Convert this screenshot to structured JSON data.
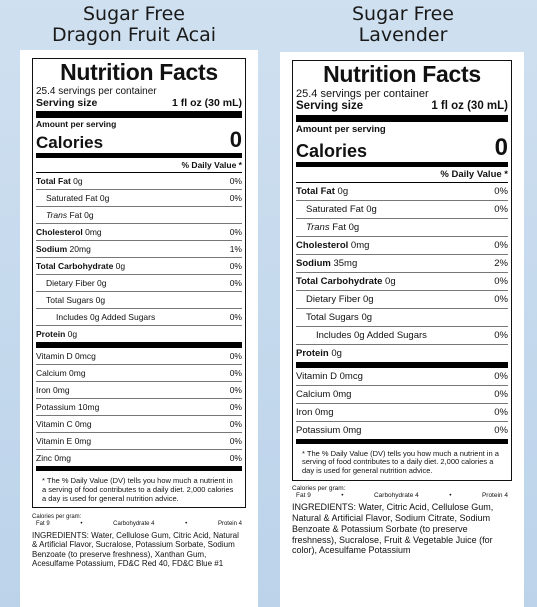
{
  "products": [
    {
      "heading": [
        "Sugar Free",
        "Dragon Fruit Acai"
      ],
      "title": "Nutrition Facts",
      "servings_per_container": "25.4 servings per container",
      "serving_size_label": "Serving size",
      "serving_size_value": "1 fl oz (30 mL)",
      "amount_per_serving": "Amount per serving",
      "calories_label": "Calories",
      "calories_value": "0",
      "dv_header": "% Daily Value *",
      "nutrients": [
        {
          "bold": "Total Fat",
          "rest": " 0g",
          "pct": "0%",
          "indent": 0
        },
        {
          "bold": "",
          "rest": "Saturated Fat 0g",
          "pct": "0%",
          "indent": 1
        },
        {
          "bold": "",
          "italic": "Trans",
          "rest": " Fat 0g",
          "pct": "",
          "indent": 1
        },
        {
          "bold": "Cholesterol",
          "rest": " 0mg",
          "pct": "0%",
          "indent": 0
        },
        {
          "bold": "Sodium",
          "rest": " 20mg",
          "pct": "1%",
          "indent": 0
        },
        {
          "bold": "Total Carbohydrate",
          "rest": " 0g",
          "pct": "0%",
          "indent": 0
        },
        {
          "bold": "",
          "rest": "Dietary Fiber 0g",
          "pct": "0%",
          "indent": 1
        },
        {
          "bold": "",
          "rest": "Total Sugars 0g",
          "pct": "",
          "indent": 1
        },
        {
          "bold": "",
          "rest": "Includes 0g Added Sugars",
          "pct": "0%",
          "indent": 2
        },
        {
          "bold": "Protein",
          "rest": " 0g",
          "pct": "",
          "indent": 0,
          "last": true
        }
      ],
      "vitamins": [
        {
          "label": "Vitamin D 0mcg",
          "pct": "0%"
        },
        {
          "label": "Calcium 0mg",
          "pct": "0%"
        },
        {
          "label": "Iron 0mg",
          "pct": "0%"
        },
        {
          "label": "Potassium 10mg",
          "pct": "0%"
        },
        {
          "label": "Vitamin C 0mg",
          "pct": "0%"
        },
        {
          "label": "Vitamin E 0mg",
          "pct": "0%"
        },
        {
          "label": "Zinc 0mg",
          "pct": "0%"
        }
      ],
      "footnote": "* The % Daily Value (DV) tells you how much a nutrient in a serving of food contributes to a daily diet. 2,000 calories a day is used for general nutrition advice.",
      "calories_per_gram": {
        "label": "Calories per gram:",
        "fat": "Fat 9",
        "carb": "Carbohydrate 4",
        "protein": "Protein 4"
      },
      "ingredients": "INGREDIENTS: Water, Cellulose Gum, Citric Acid, Natural & Artificial Flavor, Sucralose, Potassium Sorbate, Sodium Benzoate (to preserve freshness), Xanthan Gum, Acesulfame Potassium, FD&C Red 40, FD&C Blue #1"
    },
    {
      "heading": [
        "Sugar Free",
        "Lavender"
      ],
      "title": "Nutrition Facts",
      "servings_per_container": "25.4 servings per container",
      "serving_size_label": "Serving size",
      "serving_size_value": "1 fl oz (30 mL)",
      "amount_per_serving": "Amount per serving",
      "calories_label": "Calories",
      "calories_value": "0",
      "dv_header": "% Daily Value *",
      "nutrients": [
        {
          "bold": "Total Fat",
          "rest": " 0g",
          "pct": "0%",
          "indent": 0
        },
        {
          "bold": "",
          "rest": "Saturated Fat 0g",
          "pct": "0%",
          "indent": 1
        },
        {
          "bold": "",
          "italic": "Trans",
          "rest": " Fat 0g",
          "pct": "",
          "indent": 1
        },
        {
          "bold": "Cholesterol",
          "rest": " 0mg",
          "pct": "0%",
          "indent": 0
        },
        {
          "bold": "Sodium",
          "rest": " 35mg",
          "pct": "2%",
          "indent": 0
        },
        {
          "bold": "Total Carbohydrate",
          "rest": " 0g",
          "pct": "0%",
          "indent": 0
        },
        {
          "bold": "",
          "rest": "Dietary Fiber 0g",
          "pct": "0%",
          "indent": 1
        },
        {
          "bold": "",
          "rest": "Total Sugars 0g",
          "pct": "",
          "indent": 1
        },
        {
          "bold": "",
          "rest": "Includes 0g Added Sugars",
          "pct": "0%",
          "indent": 2
        },
        {
          "bold": "Protein",
          "rest": " 0g",
          "pct": "",
          "indent": 0,
          "last": true
        }
      ],
      "vitamins": [
        {
          "label": "Vitamin D 0mcg",
          "pct": "0%"
        },
        {
          "label": "Calcium 0mg",
          "pct": "0%"
        },
        {
          "label": "Iron 0mg",
          "pct": "0%"
        },
        {
          "label": "Potassium 0mg",
          "pct": "0%"
        }
      ],
      "footnote": "* The % Daily Value (DV) tells you how much a nutrient in a serving of food contributes to a daily diet. 2,000 calories a day is used for general nutrition advice.",
      "calories_per_gram": {
        "label": "Calories per gram:",
        "fat": "Fat 9",
        "carb": "Carbohydrate 4",
        "protein": "Protein 4"
      },
      "ingredients": "INGREDIENTS: Water, Citric Acid, Cellulose Gum, Natural & Artificial Flavor, Sodium Citrate, Sodium Benzoate & Potassium Sorbate (to preserve freshness), Sucralose, Fruit & Vegetable Juice (for color), Acesulfame Potassium"
    }
  ]
}
